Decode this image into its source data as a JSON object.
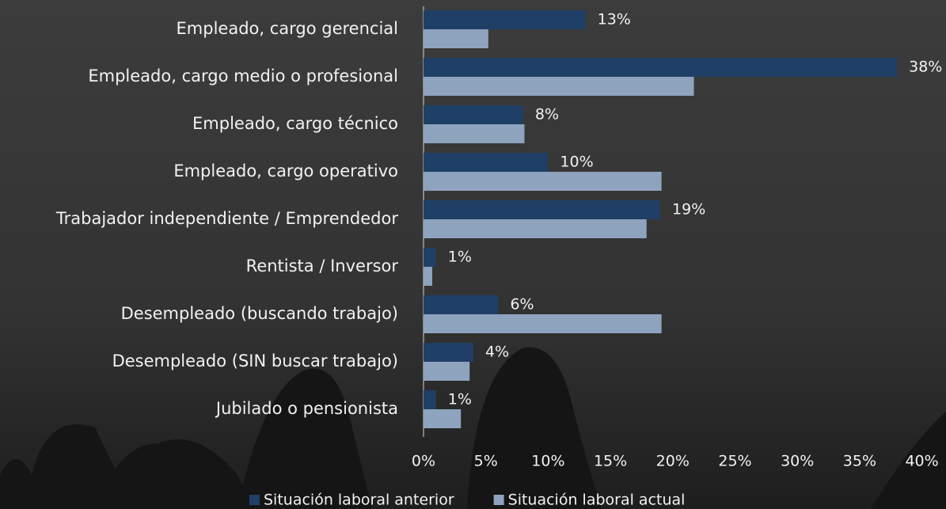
{
  "chart_data": {
    "type": "bar",
    "orientation": "horizontal",
    "categories": [
      "Empleado, cargo gerencial",
      "Empleado, cargo medio o profesional",
      "Empleado, cargo técnico",
      "Empleado, cargo operativo",
      "Trabajador independiente / Emprendedor",
      "Rentista / Inversor",
      "Desempleado (buscando trabajo)",
      "Desempleado (SIN buscar trabajo)",
      "Jubilado o pensionista"
    ],
    "series": [
      {
        "name": "Situación laboral anterior",
        "color": "#1f3f66",
        "values": [
          13,
          38,
          8,
          10,
          19,
          1,
          6,
          4,
          1
        ],
        "value_labels": [
          "13%",
          "38%",
          "8%",
          "10%",
          "19%",
          "1%",
          "6%",
          "4%",
          "1%"
        ]
      },
      {
        "name": "Situación laboral actual",
        "color": "#8ea3be",
        "values": [
          5.2,
          21.7,
          8.1,
          19.1,
          17.9,
          0.7,
          19.1,
          3.7,
          3.0
        ]
      }
    ],
    "xlim": [
      0,
      40
    ],
    "xticks": [
      {
        "value": 0,
        "label": "0%"
      },
      {
        "value": 5,
        "label": "5%"
      },
      {
        "value": 10,
        "label": "10%"
      },
      {
        "value": 15,
        "label": "15%"
      },
      {
        "value": 20,
        "label": "20%"
      },
      {
        "value": 25,
        "label": "25%"
      },
      {
        "value": 30,
        "label": "30%"
      },
      {
        "value": 35,
        "label": "35%"
      },
      {
        "value": 40,
        "label": "40%"
      }
    ],
    "legend": "bottom"
  }
}
